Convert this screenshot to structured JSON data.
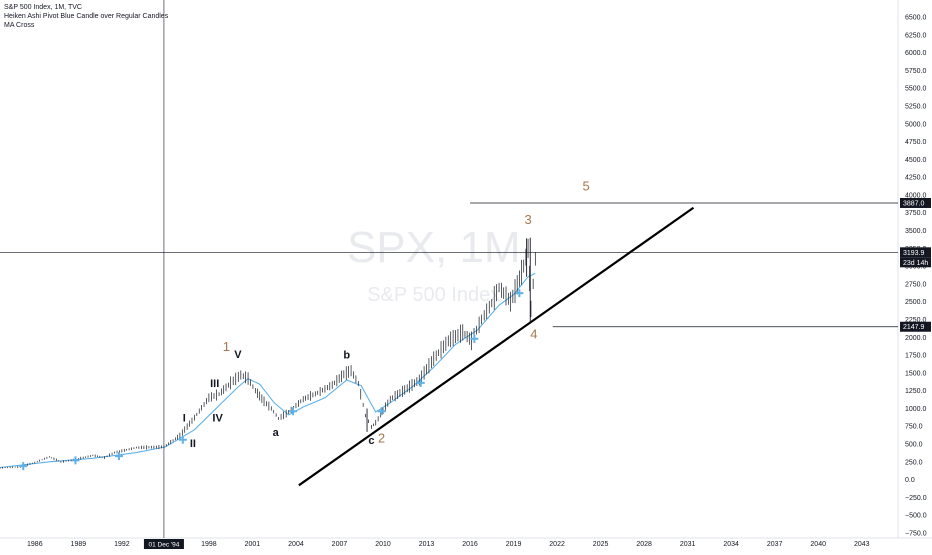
{
  "legend": {
    "title": "S&P 500 Index, 1M, TVC",
    "indicator1": "Heiken Ashi Pivot Blue Candle over Regular Candles",
    "indicator2": "MA Cross"
  },
  "watermark": {
    "symbol": "SPX, 1M",
    "name": "S&P 500 Index"
  },
  "colors": {
    "price": "#131722",
    "ma": "#5eb2e8",
    "wave": "#a5774d",
    "trend": "#000000"
  },
  "chart_data": {
    "type": "line",
    "title": "S&P 500 Index, 1M, TVC",
    "x_range": [
      1983.6,
      2045.5
    ],
    "ylim": [
      -900,
      6700
    ],
    "y_ticks": [
      6500,
      6250,
      6000,
      5750,
      5500,
      5250,
      5000,
      4750,
      4500,
      4250,
      4000,
      3750,
      3500,
      3250,
      3000,
      2750,
      2500,
      2250,
      2000,
      1750,
      1500,
      1250,
      1000,
      750,
      500,
      250,
      0,
      -250,
      -500,
      -750
    ],
    "y_tick_labels": [
      "6500.0",
      "6250.0",
      "6000.0",
      "5750.0",
      "5500.0",
      "5250.0",
      "5000.0",
      "4750.0",
      "4500.0",
      "4250.0",
      "4000.0",
      "3750.0",
      "3500.0",
      "3250.0",
      "3000.0",
      "2750.0",
      "2500.0",
      "2250.0",
      "2000.0",
      "1750.0",
      "1500.0",
      "1250.0",
      "1000.0",
      "750.0",
      "500.0",
      "250.0",
      "0.0",
      "−250.0",
      "−500.0",
      "−750.0"
    ],
    "x_ticks": [
      1986,
      1989,
      1992,
      1998,
      2001,
      2004,
      2007,
      2010,
      2013,
      2016,
      2019,
      2022,
      2025,
      2028,
      2031,
      2034,
      2037,
      2040,
      2043
    ],
    "x_tick_labels": [
      "1986",
      "1989",
      "1992",
      "1998",
      "2001",
      "2004",
      "2007",
      "2010",
      "2013",
      "2016",
      "2019",
      "2022",
      "2025",
      "2028",
      "2031",
      "2034",
      "2037",
      "2040",
      "2043"
    ],
    "series": [
      {
        "x": [
          1983.6,
          1985,
          1986,
          1987,
          1987.8,
          1988.5,
          1990,
          1990.8,
          1991.5,
          1993,
          1994.9,
          1996,
          1997,
          1998,
          1998.7,
          1999.5,
          2000.2,
          2000.7,
          2001.2,
          2001.8,
          2002.3,
          2002.8,
          2003.5,
          2004.5,
          2005.5,
          2006.5,
          2007.3,
          2007.8,
          2008.3,
          2008.8,
          2009.2,
          2009.5,
          2010.5,
          2011.5,
          2012.5,
          2013.5,
          2014.5,
          2015.5,
          2016.1,
          2016.8,
          2017.5,
          2018,
          2018.8,
          2019.1,
          2019.7,
          2020,
          2020.2,
          2020.5
        ],
        "y": [
          165,
          180,
          240,
          320,
          250,
          270,
          340,
          310,
          380,
          450,
          460,
          620,
          870,
          1150,
          1200,
          1360,
          1470,
          1420,
          1250,
          1100,
          1000,
          860,
          950,
          1130,
          1220,
          1330,
          1480,
          1530,
          1350,
          900,
          740,
          800,
          1130,
          1260,
          1400,
          1700,
          1950,
          2070,
          1950,
          2250,
          2480,
          2700,
          2500,
          2650,
          3000,
          3250,
          2400,
          3100
        ]
      },
      {
        "name": "MA Cross",
        "x": [
          1983.6,
          1987,
          1990,
          1993,
          1995,
          1997,
          1998.5,
          2000,
          2000.7,
          2001.5,
          2002.5,
          2003.5,
          2004.5,
          2006,
          2007.5,
          2008.5,
          2009.5,
          2010.5,
          2012,
          2013.5,
          2015,
          2016.5,
          2018,
          2019,
          2020,
          2020.5
        ],
        "y": [
          170,
          250,
          300,
          380,
          460,
          700,
          1000,
          1300,
          1420,
          1340,
          1080,
          910,
          1020,
          1150,
          1400,
          1320,
          950,
          1080,
          1300,
          1580,
          1900,
          2100,
          2450,
          2600,
          2850,
          2900
        ]
      }
    ],
    "crosshair": {
      "x_label": "01 Dec '94",
      "price_label": "3193.9",
      "countdown": "23d 14h"
    },
    "price_labels": [
      "3887.0",
      "3193.9",
      "2147.9"
    ],
    "horizontal_lines": [
      3887.0,
      3193.9,
      2147.9
    ],
    "trendline": {
      "from": [
        2004.2,
        -80
      ],
      "to": [
        2031.4,
        3820
      ]
    },
    "annotations": [
      {
        "text": "1",
        "x": 1999.2,
        "y": 1810,
        "color": "wave",
        "size": 13
      },
      {
        "text": "V",
        "x": 2000.0,
        "y": 1710,
        "color": "dark",
        "size": 11
      },
      {
        "text": "III",
        "x": 1998.4,
        "y": 1300,
        "color": "dark",
        "size": 11
      },
      {
        "text": "I",
        "x": 1996.3,
        "y": 820,
        "color": "dark",
        "size": 11
      },
      {
        "text": "IV",
        "x": 1998.6,
        "y": 820,
        "color": "dark",
        "size": 11
      },
      {
        "text": "II",
        "x": 1996.9,
        "y": 460,
        "color": "dark",
        "size": 11
      },
      {
        "text": "a",
        "x": 2002.6,
        "y": 610,
        "color": "dark",
        "size": 11
      },
      {
        "text": "b",
        "x": 2007.5,
        "y": 1700,
        "color": "dark",
        "size": 11
      },
      {
        "text": "c",
        "x": 2009.2,
        "y": 500,
        "color": "dark",
        "size": 11
      },
      {
        "text": "2",
        "x": 2009.9,
        "y": 520,
        "color": "wave",
        "size": 13
      },
      {
        "text": "3",
        "x": 2020.0,
        "y": 3590,
        "color": "wave",
        "size": 13
      },
      {
        "text": "4",
        "x": 2020.4,
        "y": 1980,
        "color": "wave",
        "size": 13
      },
      {
        "text": "5",
        "x": 2024.0,
        "y": 4060,
        "color": "wave",
        "size": 13
      }
    ]
  }
}
